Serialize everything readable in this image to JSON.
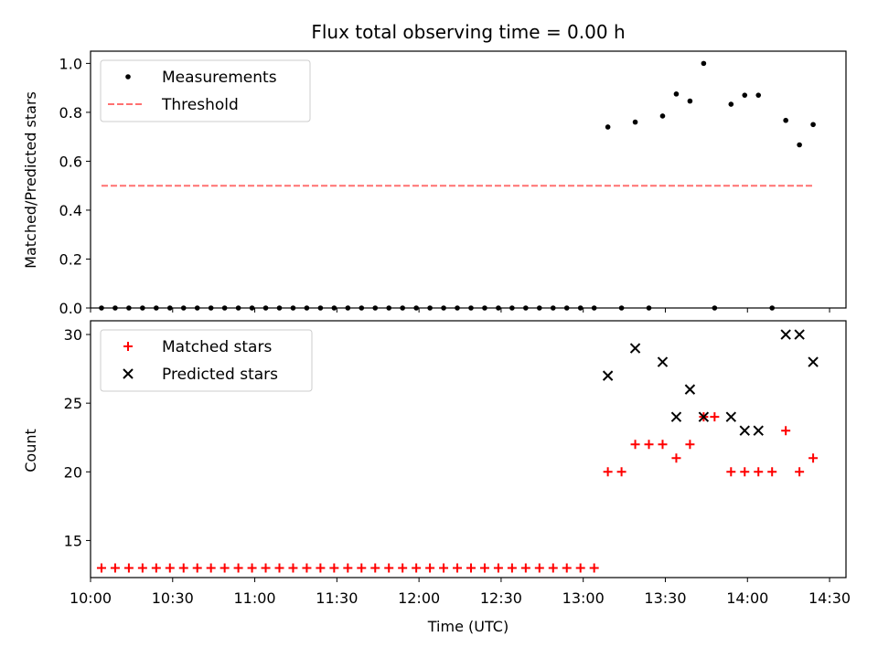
{
  "chart_data": {
    "title": "Flux total observing time = 0.00 h",
    "xlabel": "Time (UTC)",
    "xlim": [
      "10:00",
      "14:36"
    ],
    "x_ticks": [
      "10:00",
      "10:30",
      "11:00",
      "11:30",
      "12:00",
      "12:30",
      "13:00",
      "13:30",
      "14:00",
      "14:30"
    ],
    "panels": [
      {
        "type": "scatter",
        "ylabel": "Matched/Predicted stars",
        "ylim": [
          0,
          1.05
        ],
        "y_ticks": [
          "0.0",
          "0.2",
          "0.4",
          "0.6",
          "0.8",
          "1.0"
        ],
        "legend_position": "top-left",
        "series": [
          {
            "name": "Measurements",
            "style": "dot",
            "color": "#000000",
            "points": [
              [
                "10:04",
                0
              ],
              [
                "10:09",
                0
              ],
              [
                "10:14",
                0
              ],
              [
                "10:19",
                0
              ],
              [
                "10:24",
                0
              ],
              [
                "10:29",
                0
              ],
              [
                "10:34",
                0
              ],
              [
                "10:39",
                0
              ],
              [
                "10:44",
                0
              ],
              [
                "10:49",
                0
              ],
              [
                "10:54",
                0
              ],
              [
                "10:59",
                0
              ],
              [
                "11:04",
                0
              ],
              [
                "11:09",
                0
              ],
              [
                "11:14",
                0
              ],
              [
                "11:19",
                0
              ],
              [
                "11:24",
                0
              ],
              [
                "11:29",
                0
              ],
              [
                "11:34",
                0
              ],
              [
                "11:39",
                0
              ],
              [
                "11:44",
                0
              ],
              [
                "11:49",
                0
              ],
              [
                "11:54",
                0
              ],
              [
                "11:59",
                0
              ],
              [
                "12:04",
                0
              ],
              [
                "12:09",
                0
              ],
              [
                "12:14",
                0
              ],
              [
                "12:19",
                0
              ],
              [
                "12:24",
                0
              ],
              [
                "12:29",
                0
              ],
              [
                "12:34",
                0
              ],
              [
                "12:39",
                0
              ],
              [
                "12:44",
                0
              ],
              [
                "12:49",
                0
              ],
              [
                "12:54",
                0
              ],
              [
                "12:59",
                0
              ],
              [
                "13:04",
                0
              ],
              [
                "13:09",
                0.74
              ],
              [
                "13:14",
                0
              ],
              [
                "13:19",
                0.76
              ],
              [
                "13:24",
                0
              ],
              [
                "13:29",
                0.785
              ],
              [
                "13:34",
                0.875
              ],
              [
                "13:39",
                0.846
              ],
              [
                "13:44",
                1.0
              ],
              [
                "13:48",
                0
              ],
              [
                "13:54",
                0.833
              ],
              [
                "13:59",
                0.87
              ],
              [
                "14:04",
                0.87
              ],
              [
                "14:09",
                0
              ],
              [
                "14:14",
                0.767
              ],
              [
                "14:19",
                0.667
              ],
              [
                "14:24",
                0.75
              ]
            ]
          },
          {
            "name": "Threshold",
            "style": "dashed-line",
            "color": "#ff7070",
            "points": [
              [
                "10:04",
                0.5
              ],
              [
                "14:24",
                0.5
              ]
            ]
          }
        ]
      },
      {
        "type": "scatter",
        "ylabel": "Count",
        "ylim": [
          12.3,
          31
        ],
        "y_ticks": [
          "15",
          "20",
          "25",
          "30"
        ],
        "legend_position": "top-left",
        "series": [
          {
            "name": "Matched stars",
            "style": "plus",
            "color": "#ff0000",
            "points": [
              [
                "10:04",
                13
              ],
              [
                "10:09",
                13
              ],
              [
                "10:14",
                13
              ],
              [
                "10:19",
                13
              ],
              [
                "10:24",
                13
              ],
              [
                "10:29",
                13
              ],
              [
                "10:34",
                13
              ],
              [
                "10:39",
                13
              ],
              [
                "10:44",
                13
              ],
              [
                "10:49",
                13
              ],
              [
                "10:54",
                13
              ],
              [
                "10:59",
                13
              ],
              [
                "11:04",
                13
              ],
              [
                "11:09",
                13
              ],
              [
                "11:14",
                13
              ],
              [
                "11:19",
                13
              ],
              [
                "11:24",
                13
              ],
              [
                "11:29",
                13
              ],
              [
                "11:34",
                13
              ],
              [
                "11:39",
                13
              ],
              [
                "11:44",
                13
              ],
              [
                "11:49",
                13
              ],
              [
                "11:54",
                13
              ],
              [
                "11:59",
                13
              ],
              [
                "12:04",
                13
              ],
              [
                "12:09",
                13
              ],
              [
                "12:14",
                13
              ],
              [
                "12:19",
                13
              ],
              [
                "12:24",
                13
              ],
              [
                "12:29",
                13
              ],
              [
                "12:34",
                13
              ],
              [
                "12:39",
                13
              ],
              [
                "12:44",
                13
              ],
              [
                "12:49",
                13
              ],
              [
                "12:54",
                13
              ],
              [
                "12:59",
                13
              ],
              [
                "13:04",
                13
              ],
              [
                "13:09",
                20
              ],
              [
                "13:14",
                20
              ],
              [
                "13:19",
                22
              ],
              [
                "13:24",
                22
              ],
              [
                "13:29",
                22
              ],
              [
                "13:34",
                21
              ],
              [
                "13:39",
                22
              ],
              [
                "13:44",
                24
              ],
              [
                "13:48",
                24
              ],
              [
                "13:54",
                20
              ],
              [
                "13:59",
                20
              ],
              [
                "14:04",
                20
              ],
              [
                "14:09",
                20
              ],
              [
                "14:14",
                23
              ],
              [
                "14:19",
                20
              ],
              [
                "14:24",
                21
              ]
            ]
          },
          {
            "name": "Predicted stars",
            "style": "x",
            "color": "#000000",
            "points": [
              [
                "13:09",
                27
              ],
              [
                "13:19",
                29
              ],
              [
                "13:29",
                28
              ],
              [
                "13:34",
                24
              ],
              [
                "13:39",
                26
              ],
              [
                "13:44",
                24
              ],
              [
                "13:54",
                24
              ],
              [
                "13:59",
                23
              ],
              [
                "14:04",
                23
              ],
              [
                "14:14",
                30
              ],
              [
                "14:19",
                30
              ],
              [
                "14:24",
                28
              ]
            ]
          }
        ]
      }
    ]
  }
}
